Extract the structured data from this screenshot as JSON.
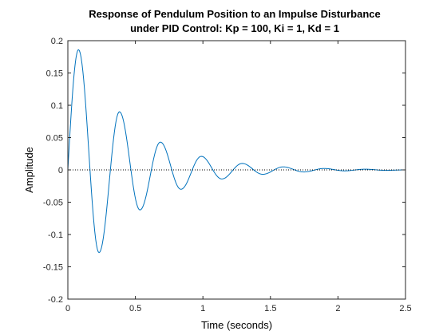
{
  "chart_data": {
    "type": "line",
    "title": [
      "Response of Pendulum Position to an Impulse Disturbance",
      "under PID Control: Kp = 100, Ki = 1, Kd = 1"
    ],
    "xlabel": "Time (seconds)",
    "ylabel": "Amplitude",
    "xlim": [
      0,
      2.5
    ],
    "ylim": [
      -0.2,
      0.2
    ],
    "xticks": [
      0,
      0.5,
      1,
      1.5,
      2,
      2.5
    ],
    "xtick_labels": [
      "0",
      "0.5",
      "1",
      "1.5",
      "2",
      "2.5"
    ],
    "yticks": [
      -0.2,
      -0.15,
      -0.1,
      -0.05,
      0,
      0.05,
      0.1,
      0.15,
      0.2
    ],
    "ytick_labels": [
      "-0.2",
      "-0.15",
      "-0.1",
      "-0.05",
      "0",
      "0.05",
      "0.1",
      "0.15",
      "0.2"
    ],
    "grid": false,
    "reference_line": {
      "y": 0,
      "style": "dotted",
      "color": "#000000"
    },
    "series": [
      {
        "color": "#0072BD",
        "x": [
          0,
          0.079,
          0.231,
          0.382,
          0.534,
          0.685,
          0.837,
          0.988,
          1.14,
          1.291,
          1.443,
          1.594,
          1.746,
          1.897,
          2.049,
          2.2,
          2.352,
          2.5
        ],
        "y": [
          0,
          0.186,
          -0.128,
          0.09,
          -0.062,
          0.043,
          -0.03,
          0.021,
          -0.014,
          0.01,
          -0.0068,
          0.0047,
          -0.0032,
          0.0022,
          -0.0015,
          0.0011,
          -0.0007,
          0.0
        ]
      }
    ]
  }
}
